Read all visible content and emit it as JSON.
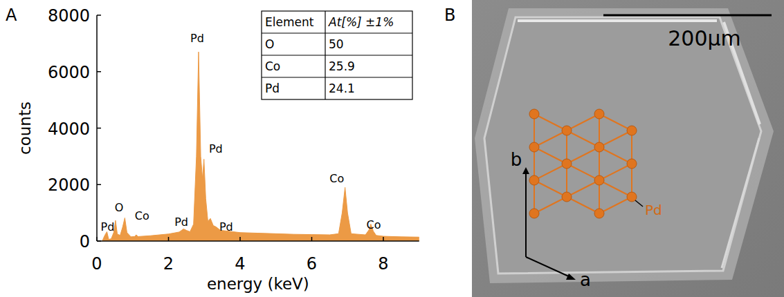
{
  "chart_data": {
    "type": "area",
    "panel": "A",
    "x_label": "energy (keV)",
    "y_label": "counts",
    "color": "#ec9a45",
    "xlim": [
      0,
      9
    ],
    "xticks": [
      0,
      2,
      4,
      6,
      8
    ],
    "ylim": [
      0,
      8000
    ],
    "yticks": [
      0,
      2000,
      4000,
      6000,
      8000
    ],
    "x": [
      0.15,
      0.22,
      0.28,
      0.33,
      0.4,
      0.47,
      0.52,
      0.57,
      0.65,
      0.72,
      0.78,
      0.84,
      0.95,
      1.05,
      1.1,
      1.15,
      1.5,
      2.0,
      2.3,
      2.42,
      2.5,
      2.6,
      2.7,
      2.78,
      2.84,
      2.9,
      2.95,
      2.99,
      3.04,
      3.1,
      3.17,
      3.25,
      3.33,
      3.45,
      3.6,
      3.8,
      4.0,
      4.5,
      5.0,
      5.5,
      6.0,
      6.5,
      6.75,
      6.85,
      6.93,
      7.0,
      7.1,
      7.5,
      7.6,
      7.65,
      7.72,
      7.8,
      8.0,
      8.5,
      9.0
    ],
    "values": [
      0,
      200,
      330,
      60,
      80,
      300,
      730,
      250,
      200,
      500,
      820,
      300,
      150,
      160,
      220,
      160,
      190,
      250,
      320,
      430,
      380,
      330,
      600,
      3000,
      6700,
      3000,
      2200,
      2900,
      1500,
      700,
      800,
      550,
      500,
      380,
      360,
      330,
      300,
      280,
      260,
      240,
      230,
      220,
      260,
      1000,
      1900,
      1000,
      260,
      220,
      400,
      600,
      350,
      200,
      170,
      150,
      140
    ],
    "annotations": [
      {
        "text": "Pd",
        "x": 0.3,
        "y": 520
      },
      {
        "text": "O",
        "x": 0.62,
        "y": 1200
      },
      {
        "text": "Co",
        "x": 1.26,
        "y": 900
      },
      {
        "text": "Pd",
        "x": 2.36,
        "y": 690
      },
      {
        "text": "Pd",
        "x": 2.8,
        "y": 7200
      },
      {
        "text": "Pd",
        "x": 3.32,
        "y": 3280
      },
      {
        "text": "Pd",
        "x": 3.61,
        "y": 520
      },
      {
        "text": "Co",
        "x": 6.7,
        "y": 2230
      },
      {
        "text": "Co",
        "x": 7.73,
        "y": 590
      }
    ],
    "table": {
      "header": [
        "Element",
        "At[%] ±1%"
      ],
      "rows": [
        [
          "O",
          50
        ],
        [
          "Co",
          25.9
        ],
        [
          "Pd",
          24.1
        ]
      ]
    }
  },
  "image_panel": {
    "panel": "B",
    "scale_bar": "200μm",
    "axes": [
      "a",
      "b"
    ],
    "atom": "Pd"
  }
}
